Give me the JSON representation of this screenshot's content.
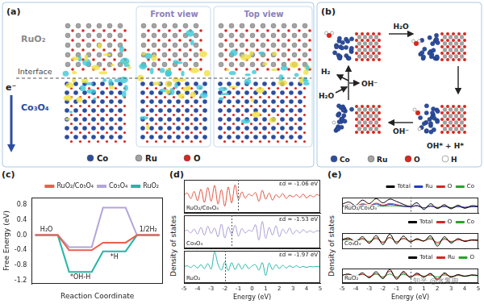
{
  "diagrams": [
    {
      "label": "(a)",
      "texts": {
        "upper": "RuO₂",
        "interface": "Interface",
        "lower": "Co₃O₄",
        "electron": "e⁻",
        "views": [
          "Front view",
          "Top view"
        ]
      },
      "legend": [
        "Co",
        "Ru",
        "O"
      ]
    },
    {
      "label": "(b)",
      "texts": {
        "adsorb": "H₂O",
        "split": "OH* + H*",
        "release": "OH⁻",
        "in": "H₂O",
        "out_h2": "H₂",
        "out_oh": "OH⁻"
      },
      "legend": [
        "Co",
        "Ru",
        "O",
        "H"
      ]
    }
  ],
  "chart_data": [
    {
      "label": "(c)",
      "type": "line",
      "line_style": "step",
      "categories": [
        "H₂O",
        "*OH-H",
        "*H",
        "1/2H₂"
      ],
      "series": [
        {
          "name": "RuO₂/Co₃O₄",
          "color": "#e8604c",
          "values": [
            0,
            -0.4,
            -0.2,
            0
          ]
        },
        {
          "name": "Co₃O₄",
          "color": "#b3a5d8",
          "values": [
            0,
            -0.32,
            0.73,
            0
          ]
        },
        {
          "name": "RuO₂",
          "color": "#26b5a8",
          "values": [
            0,
            -0.98,
            -0.43,
            0
          ]
        }
      ],
      "ylim": [
        -1.3,
        1.0
      ],
      "yticks": [
        -1.2,
        -0.8,
        -0.4,
        {
          "value": 0,
          "label": "0.0"
        },
        0.4,
        0.8
      ],
      "ylabel": "Free Energy (eV)",
      "xlabel": "Reaction Coordinate",
      "legend": "upper right",
      "tick_labels": "y",
      "grid": false
    },
    {
      "label": "(d)",
      "ylabel": "Density of states",
      "type": "line",
      "x": [
        -5,
        -4.75,
        -4.5,
        -4.25,
        -4,
        -3.75,
        -3.5,
        -3.25,
        -3,
        -2.75,
        -2.5,
        -2.25,
        -2,
        -1.75,
        -1.5,
        -1.25,
        -1,
        -0.75,
        -0.5,
        -0.25,
        0,
        0.25,
        0.5,
        0.75,
        1,
        1.25,
        1.5,
        1.75,
        2,
        2.25,
        2.5,
        2.75,
        3,
        3.25,
        3.5,
        3.75,
        4,
        4.25,
        4.5,
        4.75,
        5
      ],
      "values": [
        0.2,
        0.6,
        -0.4,
        0.9,
        -0.8,
        1.3,
        -1.1,
        1.6,
        -0.9,
        2.0,
        -1.4,
        1.2,
        -1.8,
        1.7,
        -1.2,
        2.1,
        -0.6,
        0.8,
        -0.3,
        0.4,
        0.1,
        0.7,
        -0.9,
        1.1,
        -0.5,
        0.6,
        -0.7,
        0.3,
        -0.2,
        0.5,
        -0.4,
        0.2,
        -0.1,
        0.3,
        -0.2,
        0.4,
        -0.3,
        0.2,
        -0.1,
        0.3,
        0.1
      ],
      "color": "#e0533f",
      "xlim": [
        -5,
        5
      ],
      "xticks": [
        -5,
        -4,
        -3,
        -2,
        -1,
        0,
        1,
        2,
        3,
        4,
        5
      ],
      "ylim": [
        -3,
        3
      ],
      "tick_labels": false,
      "grid": false,
      "annotations": [
        {
          "text": "RuO₂/Co₃O₄"
        },
        {
          "text": "εd = -1.06 eV",
          "x": -1.06
        }
      ]
    },
    {
      "type": "line",
      "x": [
        -5,
        -4.75,
        -4.5,
        -4.25,
        -4,
        -3.75,
        -3.5,
        -3.25,
        -3,
        -2.75,
        -2.5,
        -2.25,
        -2,
        -1.75,
        -1.5,
        -1.25,
        -1,
        -0.75,
        -0.5,
        -0.25,
        0,
        0.25,
        0.5,
        0.75,
        1,
        1.25,
        1.5,
        1.75,
        2,
        2.25,
        2.5,
        2.75,
        3,
        3.25,
        3.5,
        3.75,
        4,
        4.25,
        4.5,
        4.75,
        5
      ],
      "values": [
        0.1,
        0.3,
        -0.2,
        0.5,
        -0.4,
        0.8,
        -0.6,
        1.0,
        -0.3,
        0.7,
        -0.9,
        1.4,
        -1.1,
        0.9,
        -0.5,
        1.2,
        -0.8,
        0.6,
        -0.2,
        0.3,
        0.1,
        1.3,
        -1.5,
        1.9,
        -1.2,
        0.8,
        -0.6,
        1.1,
        -0.9,
        0.5,
        -0.3,
        0.7,
        -0.4,
        0.3,
        -0.2,
        0.4,
        -0.1,
        0.2,
        -0.1,
        0.2,
        0.1
      ],
      "color": "#a99bd3",
      "xlim": [
        -5,
        5
      ],
      "xticks": [
        -5,
        -4,
        -3,
        -2,
        -1,
        0,
        1,
        2,
        3,
        4,
        5
      ],
      "ylim": [
        -3,
        3
      ],
      "tick_labels": false,
      "grid": false,
      "annotations": [
        {
          "text": "Co₃O₄"
        },
        {
          "text": "εd = -1.53 eV",
          "x": -1.53
        }
      ]
    },
    {
      "type": "line",
      "x": [
        -5,
        -4.75,
        -4.5,
        -4.25,
        -4,
        -3.75,
        -3.5,
        -3.25,
        -3,
        -2.75,
        -2.5,
        -2.25,
        -2,
        -1.75,
        -1.5,
        -1.25,
        -1,
        -0.75,
        -0.5,
        -0.25,
        0,
        0.25,
        0.5,
        0.75,
        1,
        1.25,
        1.5,
        1.75,
        2,
        2.25,
        2.5,
        2.75,
        3,
        3.25,
        3.5,
        3.75,
        4,
        4.25,
        4.5,
        4.75,
        5
      ],
      "values": [
        0.1,
        0.2,
        -0.1,
        0.3,
        -0.2,
        0.4,
        -0.3,
        0.6,
        -0.4,
        2.8,
        0.5,
        -0.6,
        0.9,
        -0.7,
        0.8,
        -0.5,
        0.6,
        -0.4,
        0.5,
        -0.3,
        0.2,
        0.4,
        -0.6,
        0.8,
        -1.6,
        0.7,
        -0.5,
        0.4,
        -0.3,
        0.3,
        -0.2,
        0.2,
        -0.1,
        0.2,
        -0.1,
        0.1,
        -0.1,
        0.1,
        0.0,
        0.1,
        0.0
      ],
      "color": "#26b5a8",
      "xlim": [
        -5,
        5
      ],
      "xticks": [
        -5,
        -4,
        -3,
        -2,
        -1,
        0,
        1,
        2,
        3,
        4,
        5
      ],
      "ylim": [
        -3,
        3
      ],
      "tick_labels": "x",
      "xlabel": "Energy (eV)",
      "grid": false,
      "annotations": [
        {
          "text": "RuO₂"
        },
        {
          "text": "εd = -1.97 eV",
          "x": -1.97
        }
      ]
    },
    {
      "label": "(e)",
      "ylabel": "Density of states",
      "type": "line",
      "x": [
        -5,
        -4.5,
        -4,
        -3.5,
        -3,
        -2.5,
        -2,
        -1.5,
        -1,
        -0.5,
        0,
        0.5,
        1,
        1.5,
        2,
        2.5,
        3,
        3.5,
        4,
        4.5,
        5
      ],
      "series": [
        {
          "name": "Total",
          "color": "#000000",
          "values": [
            1.0,
            1.8,
            0.6,
            2.5,
            1.2,
            3.0,
            1.5,
            2.8,
            2.0,
            1.0,
            0.3,
            1.5,
            -0.8,
            1.2,
            -0.5,
            0.9,
            -0.6,
            0.7,
            -0.4,
            0.5,
            0.3
          ]
        },
        {
          "name": "Ru",
          "color": "#1f3fbf",
          "values": [
            0.3,
            0.6,
            0.2,
            0.9,
            0.4,
            1.1,
            0.5,
            1.0,
            0.7,
            0.4,
            0.1,
            0.6,
            -0.3,
            0.4,
            -0.2,
            0.3,
            -0.2,
            0.2,
            -0.1,
            0.2,
            0.1
          ]
        },
        {
          "name": "O",
          "color": "#d62728",
          "values": [
            0.4,
            0.8,
            0.3,
            1.2,
            0.6,
            1.4,
            0.7,
            1.3,
            0.9,
            0.4,
            0.1,
            0.5,
            -0.2,
            0.3,
            -0.1,
            0.3,
            -0.2,
            0.2,
            -0.1,
            0.2,
            0.1
          ]
        },
        {
          "name": "Co",
          "color": "#2ca02c",
          "values": [
            0.2,
            0.3,
            0.1,
            0.4,
            0.2,
            0.5,
            0.3,
            0.5,
            0.4,
            0.2,
            0.1,
            0.4,
            -0.3,
            0.5,
            -0.2,
            0.3,
            -0.2,
            0.3,
            -0.2,
            0.1,
            0.1
          ]
        }
      ],
      "xlim": [
        -5,
        5
      ],
      "xticks": [
        -5,
        -4,
        -3,
        -2,
        -1,
        0,
        1,
        2,
        3,
        4,
        5
      ],
      "ylim": [
        -2,
        3.5
      ],
      "tick_labels": false,
      "grid": false,
      "legend": "upper right",
      "reference_lines": [
        0
      ],
      "annotations": [
        {
          "text": "RuO₂/Co₃O₄"
        }
      ]
    },
    {
      "type": "line",
      "x": [
        -5,
        -4.5,
        -4,
        -3.5,
        -3,
        -2.5,
        -2,
        -1.5,
        -1,
        -0.5,
        0,
        0.5,
        1,
        1.5,
        2,
        2.5,
        3,
        3.5,
        4,
        4.5,
        5
      ],
      "series": [
        {
          "name": "Total",
          "color": "#000000",
          "values": [
            0.3,
            0.8,
            -0.4,
            1.2,
            -0.9,
            1.6,
            -1.3,
            2.0,
            -1.0,
            1.4,
            -0.5,
            0.6,
            -0.2,
            1.5,
            -1.8,
            1.2,
            -0.8,
            0.6,
            -0.3,
            0.2,
            0.1
          ]
        },
        {
          "name": "O",
          "color": "#d62728",
          "values": [
            0.2,
            0.5,
            -0.2,
            0.7,
            -0.5,
            0.9,
            -0.7,
            1.0,
            -0.5,
            0.7,
            -0.3,
            0.3,
            -0.1,
            0.5,
            -0.6,
            0.4,
            -0.3,
            0.2,
            -0.1,
            0.1,
            0.0
          ]
        },
        {
          "name": "Co",
          "color": "#2ca02c",
          "values": [
            0.1,
            0.2,
            -0.1,
            0.4,
            -0.3,
            0.6,
            -0.5,
            0.9,
            -0.4,
            0.6,
            -0.2,
            0.3,
            -0.1,
            0.9,
            -1.1,
            0.7,
            -0.5,
            0.3,
            -0.2,
            0.1,
            0.0
          ]
        }
      ],
      "xlim": [
        -5,
        5
      ],
      "xticks": [
        -5,
        -4,
        -3,
        -2,
        -1,
        0,
        1,
        2,
        3,
        4,
        5
      ],
      "ylim": [
        -2.5,
        2.5
      ],
      "tick_labels": false,
      "grid": false,
      "legend": "upper right",
      "reference_lines": [
        0
      ],
      "annotations": [
        {
          "text": "Co₃O₄"
        }
      ]
    },
    {
      "type": "line",
      "x": [
        -5,
        -4.5,
        -4,
        -3.5,
        -3,
        -2.5,
        -2,
        -1.5,
        -1,
        -0.5,
        0,
        0.5,
        1,
        1.5,
        2,
        2.5,
        3,
        3.5,
        4,
        4.5,
        5
      ],
      "series": [
        {
          "name": "Total",
          "color": "#000000",
          "values": [
            0.2,
            0.6,
            -0.3,
            1.0,
            -0.7,
            1.4,
            -1.0,
            2.2,
            -1.2,
            1.5,
            -0.6,
            0.9,
            -0.4,
            0.8,
            -1.4,
            1.0,
            -0.5,
            0.4,
            -0.2,
            0.3,
            0.1
          ]
        },
        {
          "name": "Ru",
          "color": "#d62728",
          "values": [
            0.1,
            0.3,
            -0.1,
            0.5,
            -0.3,
            0.8,
            -0.6,
            1.6,
            -0.8,
            1.0,
            -0.4,
            0.6,
            -0.3,
            0.6,
            -1.0,
            0.7,
            -0.3,
            0.3,
            -0.1,
            0.2,
            0.1
          ]
        },
        {
          "name": "O",
          "color": "#2ca02c",
          "values": [
            0.1,
            0.3,
            -0.2,
            0.5,
            -0.4,
            0.6,
            -0.4,
            0.6,
            -0.4,
            0.5,
            -0.2,
            0.3,
            -0.1,
            0.2,
            -0.4,
            0.3,
            -0.2,
            0.1,
            -0.1,
            0.1,
            0.0
          ]
        }
      ],
      "xlim": [
        -5,
        5
      ],
      "xticks": [
        -5,
        -4,
        -3,
        -2,
        -1,
        0,
        1,
        2,
        3,
        4,
        5
      ],
      "ylim": [
        -2.5,
        2.5
      ],
      "tick_labels": "x",
      "xlabel": "Energy (eV)",
      "grid": false,
      "legend": "upper right",
      "reference_lines": [
        0
      ],
      "annotations": [
        {
          "text": "RuO₂"
        }
      ]
    }
  ],
  "watermark": "知乎 @水氢电"
}
